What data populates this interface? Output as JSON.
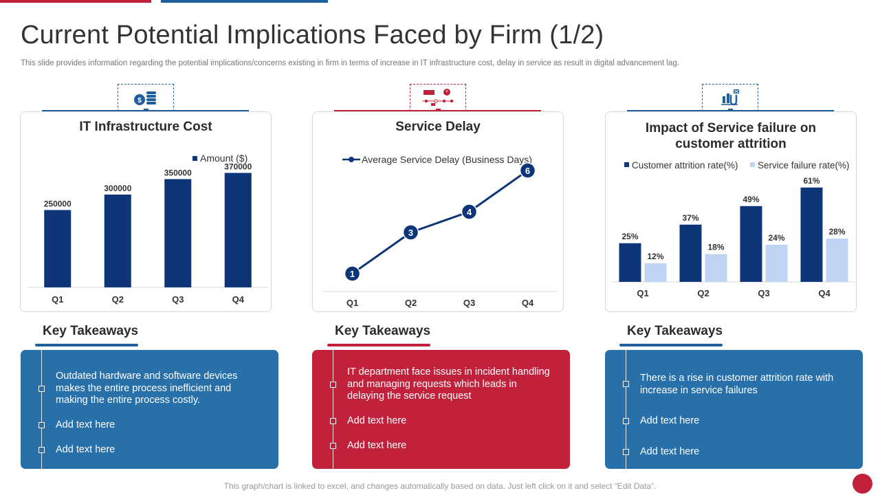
{
  "slide": {
    "title": "Current Potential Implications Faced by Firm (1/2)",
    "subtitle": "This slide provides information regarding the potential implications/concerns existing in firm in terms of increase in IT infrastructure cost, delay in service as result in digital advancement lag.",
    "footer": "This graph/chart is linked to excel, and changes automatically based on data. Just left click on it and select “Edit Data”."
  },
  "colors": {
    "navy": "#0e3578",
    "light_blue": "#bfd3f2",
    "panel_blue": "#2770aa",
    "panel_red": "#c1213a",
    "accent_blue": "#1f5f9e"
  },
  "icons": [
    "money-coins-icon",
    "hourglass-timeline-icon",
    "customer-attrition-icon"
  ],
  "cards": [
    {
      "title": "IT Infrastructure Cost"
    },
    {
      "title": "Service Delay"
    },
    {
      "title": "Impact of Service failure on customer attrition"
    }
  ],
  "takeaways": [
    {
      "heading": "Key Takeaways",
      "items": [
        "Outdated hardware and software devices makes the entire process inefficient and making the entire process costly.",
        "Add text here",
        "Add text here"
      ]
    },
    {
      "heading": "Key Takeaways",
      "items": [
        "IT department face issues in incident handling and managing requests which leads in delaying the service request",
        "Add text here",
        "Add text here"
      ]
    },
    {
      "heading": "Key Takeaways",
      "items": [
        "There is a rise in customer attrition rate with increase in service failures",
        "Add text here",
        "Add text here"
      ]
    }
  ],
  "chart_data": [
    {
      "type": "bar",
      "title": "IT Infrastructure Cost",
      "categories": [
        "Q1",
        "Q2",
        "Q3",
        "Q4"
      ],
      "series": [
        {
          "name": "Amount ($)",
          "values": [
            250000,
            300000,
            350000,
            370000
          ],
          "labels": [
            "250000",
            "300000",
            "350000",
            "370000"
          ]
        }
      ],
      "legend": "top-right",
      "ylim": [
        0,
        400000
      ]
    },
    {
      "type": "line",
      "title": "Service Delay",
      "categories": [
        "Q1",
        "Q2",
        "Q3",
        "Q4"
      ],
      "series": [
        {
          "name": "Average Service Delay (Business Days)",
          "values": [
            1,
            3,
            4,
            6
          ],
          "labels": [
            "1",
            "3",
            "4",
            "6"
          ]
        }
      ],
      "legend": "top",
      "ylim": [
        0,
        6.5
      ]
    },
    {
      "type": "bar",
      "title": "Impact of Service failure on customer attrition",
      "categories": [
        "Q1",
        "Q2",
        "Q3",
        "Q4"
      ],
      "series": [
        {
          "name": "Customer attrition rate(%)",
          "values": [
            25,
            37,
            49,
            61
          ],
          "labels": [
            "25%",
            "37%",
            "49%",
            "61%"
          ]
        },
        {
          "name": "Service failure rate(%)",
          "values": [
            12,
            18,
            24,
            28
          ],
          "labels": [
            "12%",
            "18%",
            "24%",
            "28%"
          ]
        }
      ],
      "legend": "top",
      "ylim": [
        0,
        65
      ]
    }
  ]
}
